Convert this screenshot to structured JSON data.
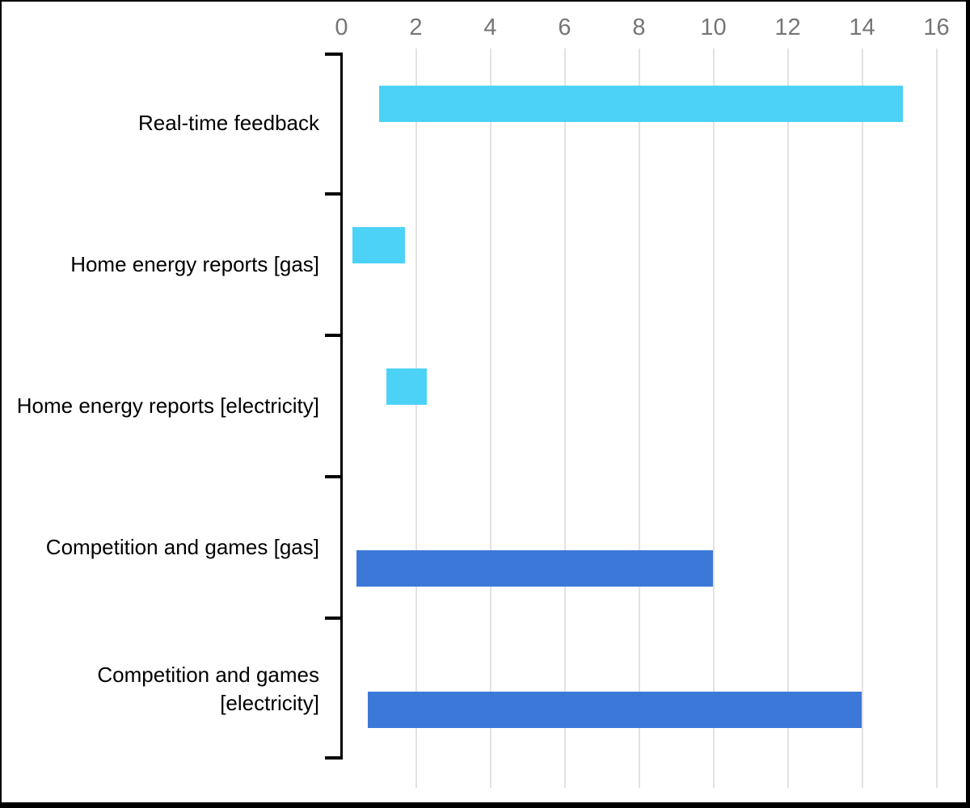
{
  "chart_data": {
    "type": "bar",
    "subtype": "floating-range-bars",
    "orientation": "horizontal",
    "title": "",
    "xlabel": "",
    "ylabel": "",
    "x_axis_position": "top",
    "xlim": [
      0,
      16
    ],
    "x_ticks": [
      "0",
      "2",
      "4",
      "6",
      "8",
      "10",
      "12",
      "14",
      "16"
    ],
    "grid": "vertical gridlines at every labeled x tick",
    "legend": "none",
    "categories": [
      "Real-time feedback",
      "Home energy reports [gas]",
      "Home energy reports [electricity]",
      "Competition and games [gas]",
      "Competition and games [electricity]"
    ],
    "bars": [
      {
        "category": "Real-time feedback",
        "range_low": 1.0,
        "range_high": 15.1,
        "color": "#4dd2f7",
        "row_slot": "upper"
      },
      {
        "category": "Home energy reports [gas]",
        "range_low": 0.3,
        "range_high": 1.7,
        "color": "#4dd2f7",
        "row_slot": "upper"
      },
      {
        "category": "Home energy reports [electricity]",
        "range_low": 1.2,
        "range_high": 2.3,
        "color": "#4dd2f7",
        "row_slot": "upper"
      },
      {
        "category": "Competition and games [gas]",
        "range_low": 0.4,
        "range_high": 10.0,
        "color": "#3c78d8",
        "row_slot": "lower"
      },
      {
        "category": "Competition and games [electricity]",
        "range_low": 0.7,
        "range_high": 14.0,
        "color": "#3c78d8",
        "row_slot": "lower"
      }
    ],
    "colors": {
      "bar_cyan": "#4dd2f7",
      "bar_blue": "#3c78d8",
      "gridline": "#e2e2e2",
      "axis": "#000000",
      "tick_label": "#757575",
      "category_label": "#000000",
      "background": "#ffffff",
      "frame_border": "#000000"
    }
  }
}
